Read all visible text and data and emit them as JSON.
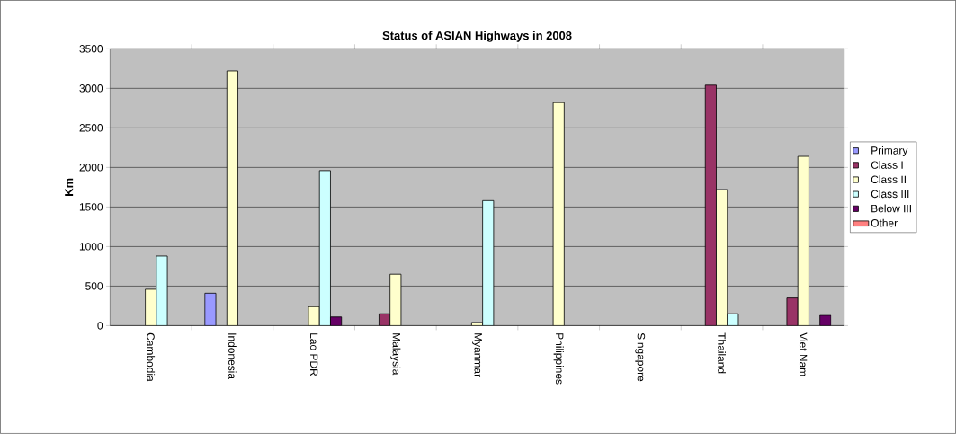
{
  "chart_data": {
    "type": "bar",
    "title": "Status of ASIAN Highways in 2008",
    "ylabel": "Km",
    "categories": [
      "Cambodia",
      "Indonesia",
      "Lao PDR",
      "Malaysia",
      "Myanmar",
      "Philippines",
      "Singapore",
      "Thailand",
      "Viet Nam"
    ],
    "series": [
      {
        "name": "Primary",
        "color": "#9999ff",
        "values": [
          null,
          410,
          null,
          null,
          null,
          null,
          null,
          null,
          null
        ]
      },
      {
        "name": "Class I",
        "color": "#993366",
        "values": [
          null,
          null,
          null,
          150,
          null,
          null,
          null,
          3040,
          350
        ]
      },
      {
        "name": "Class II",
        "color": "#ffffcc",
        "values": [
          460,
          3220,
          240,
          650,
          40,
          2820,
          null,
          1720,
          2140
        ]
      },
      {
        "name": "Class III",
        "color": "#ccffff",
        "values": [
          880,
          null,
          1960,
          null,
          1580,
          null,
          null,
          150,
          null
        ]
      },
      {
        "name": "Below III",
        "color": "#660066",
        "values": [
          null,
          null,
          110,
          null,
          null,
          null,
          null,
          null,
          130
        ]
      },
      {
        "name": "Other",
        "color": "#ff8080",
        "values": [
          null,
          null,
          null,
          null,
          null,
          null,
          null,
          null,
          null
        ]
      }
    ],
    "ylim": [
      0,
      3500
    ],
    "yticks": [
      0,
      500,
      1000,
      1500,
      2000,
      2500,
      3000,
      3500
    ],
    "grid": "y",
    "legend": "right"
  }
}
